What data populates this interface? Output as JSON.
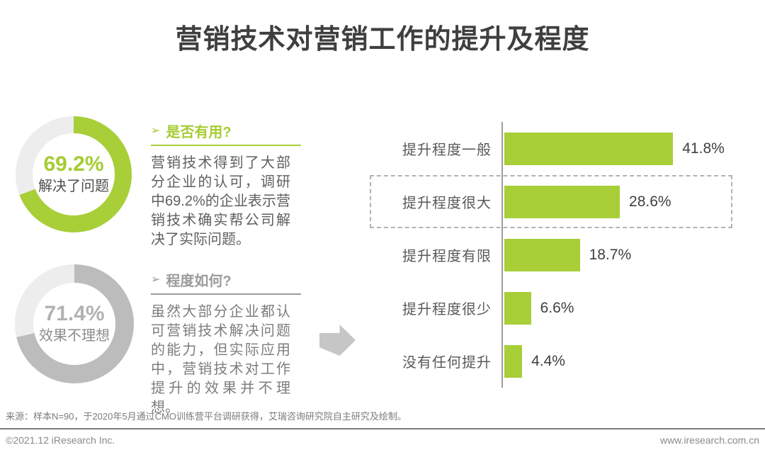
{
  "title": "营销技术对营销工作的提升及程度",
  "colors": {
    "accent_green": "#a8ce38",
    "donut_gray": "#bcbcbc",
    "track_gray": "#ededed",
    "text_dark": "#3f3f3f"
  },
  "donuts": [
    {
      "value": 69.2,
      "value_label": "69.2%",
      "caption": "解决了问题",
      "arc_color": "#a8ce38",
      "track_color": "#ededed"
    },
    {
      "value": 71.4,
      "value_label": "71.4%",
      "caption": "效果不理想",
      "arc_color": "#bcbcbc",
      "track_color": "#ededed"
    }
  ],
  "sections": [
    {
      "arrow": "➢",
      "heading": "是否有用?",
      "body": "营销技术得到了大部分企业的认可，调研中69.2%的企业表示营销技术确实帮公司解决了实际问题。"
    },
    {
      "arrow": "➢",
      "heading": "程度如何?",
      "body": "虽然大部分企业都认可营销技术解决问题的能力，但实际应用中，营销技术对工作提升的效果并不理想。"
    }
  ],
  "chart_data": {
    "type": "bar",
    "orientation": "horizontal",
    "categories": [
      "提升程度一般",
      "提升程度很大",
      "提升程度有限",
      "提升程度很少",
      "没有任何提升"
    ],
    "values": [
      41.8,
      28.6,
      18.7,
      6.6,
      4.4
    ],
    "value_labels": [
      "41.8%",
      "28.6%",
      "18.7%",
      "6.6%",
      "4.4%"
    ],
    "bar_color": "#a8ce38",
    "highlight_index": 1,
    "title": "",
    "xlabel": "",
    "ylabel": "",
    "xlim": [
      0,
      50
    ],
    "grid": false,
    "legend": false
  },
  "footer": {
    "source": "来源：样本N=90，于2020年5月通过CMO训练营平台调研获得，艾瑞咨询研究院自主研究及绘制。",
    "copyright": "©2021.12 iResearch Inc.",
    "website": "www.iresearch.com.cn"
  }
}
